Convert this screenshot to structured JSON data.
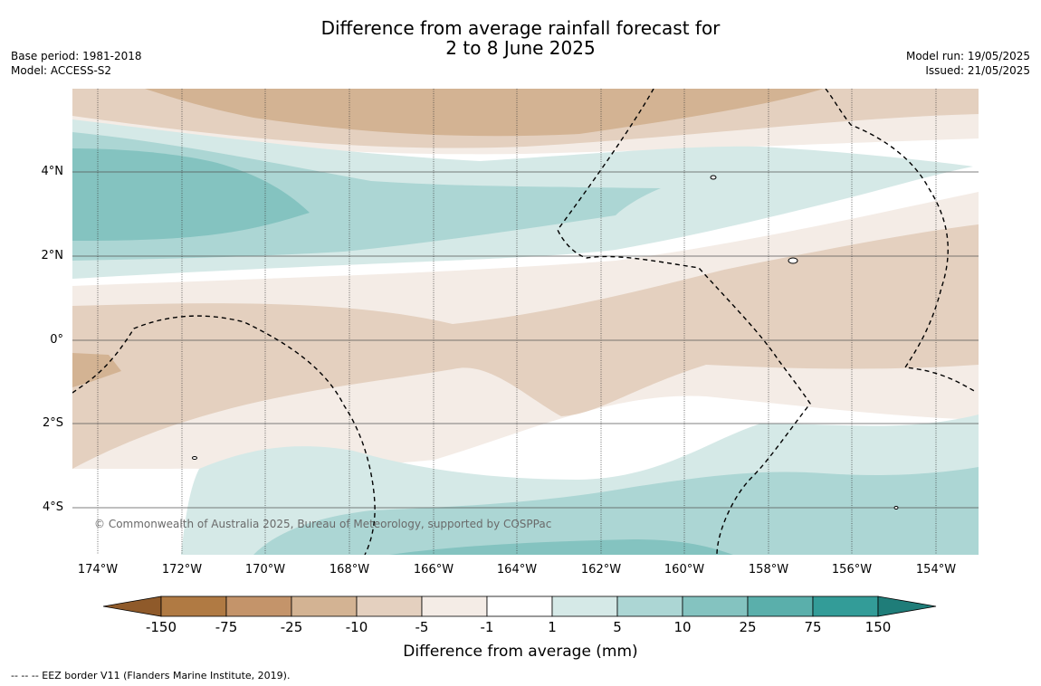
{
  "header": {
    "title_line1": "Difference from average rainfall forecast for",
    "title_line2": "2 to 8 June 2025",
    "base_period": "Base period: 1981-2018",
    "model": "Model: ACCESS-S2",
    "model_run": "Model run: 19/05/2025",
    "issued": "Issued: 21/05/2025"
  },
  "map": {
    "lat_labels": [
      "4°N",
      "2°N",
      "0°",
      "2°S",
      "4°S"
    ],
    "lon_labels": [
      "174°W",
      "172°W",
      "170°W",
      "168°W",
      "166°W",
      "164°W",
      "162°W",
      "160°W",
      "158°W",
      "156°W",
      "154°W"
    ],
    "copyright": "© Commonwealth of Australia 2025, Bureau of Meteorology, supported by COSPPac",
    "colors": {
      "dry_150": "#8f5a2a",
      "dry_75": "#b07a43",
      "dry_25": "#c4946a",
      "dry_10": "#d3b393",
      "dry_5": "#e4d0bf",
      "dry_1": "#f4ece6",
      "neutral": "#ffffff",
      "wet_1": "#d5e9e7",
      "wet_5": "#acd6d4",
      "wet_10": "#84c3c0",
      "wet_25": "#5aafab",
      "wet_75": "#339c98",
      "wet_150": "#1f7d79"
    }
  },
  "colorbar": {
    "ticks": [
      "-150",
      "-75",
      "-25",
      "-10",
      "-5",
      "-1",
      "1",
      "5",
      "10",
      "25",
      "75",
      "150"
    ],
    "label": "Difference from average (mm)"
  },
  "footnote": "--  --  -- EEZ border V11 (Flanders Marine Institute, 2019)."
}
